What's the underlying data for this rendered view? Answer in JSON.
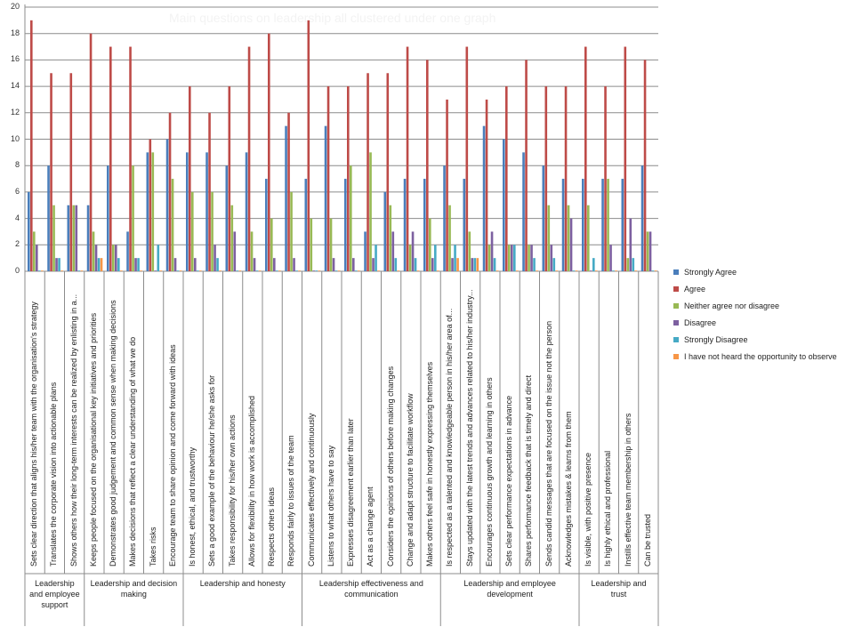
{
  "chart_data": {
    "type": "bar",
    "title": "Main questions on leadership all clustered under one graph",
    "ylim": [
      0,
      20
    ],
    "yticks": [
      "0",
      "2",
      "4",
      "6",
      "8",
      "10",
      "12",
      "14",
      "16",
      "18",
      "20"
    ],
    "grid": true,
    "legend_position": "right",
    "categories": [
      "Sets clear direction that aligns his/her team with the organisation's strategy",
      "Translates the corporate vision into actionable plans",
      "Shows others how their long-term interests can be realized by enlisting in a...",
      "Keeps people focused on the organisational key initiatives and priorities",
      "Demonstrates good judgement and common sense when making decisions",
      "Makes decisions that reflect a clear understanding of what we do",
      "Takes risks",
      "Encourage team to share opinion and come forward with ideas",
      "Is honest, ethical, and trustworthy",
      "Sets a good example of the behaviour he/she asks for",
      "Takes responsibility for his/her own actions",
      "Allows for flexibility in how work is accomplished",
      "Respects others ideas",
      "Responds fairly to issues of the team",
      "Communicates effectively and continuously",
      "Listens to what others have to say",
      "Expresses disagreement earlier than later",
      "Act as a change agent",
      "Considers the opinions of others before making changes",
      "Change and adapt structure to facilitate workflow",
      "Makes others feel safe in honestly expressing themselves",
      "Is respected as a talented and knowledgeable person in his/her area of...",
      "Stays updated with the latest trends and advances related to his/her industry...",
      "Encourages continuous growth and learning in others",
      "Sets clear performance expectations in advance",
      "Shares performance feedback that is timely and direct",
      "Sends candid messages that are focused on the issue not the person",
      "Acknowledges mistakes & learns from them",
      "Is visible, with positive presence",
      "Is highly ethical and professional",
      "Instills effective team membership in others",
      "Can be trusted"
    ],
    "groups": [
      {
        "label": "Leadership and employee support",
        "count": 3
      },
      {
        "label": "Leadership and decision making",
        "count": 5
      },
      {
        "label": "Leadership and honesty",
        "count": 6
      },
      {
        "label": "Leadership effectiveness and communication",
        "count": 7
      },
      {
        "label": "Leadership and employee development",
        "count": 7
      },
      {
        "label": "Leadership and trust",
        "count": 4
      }
    ],
    "series": [
      {
        "name": "Strongly Agree",
        "color": "#4a7ebb",
        "values": [
          6,
          8,
          5,
          5,
          8,
          3,
          9,
          10,
          9,
          9,
          8,
          9,
          7,
          11,
          7,
          11,
          7,
          3,
          6,
          7,
          7,
          8,
          7,
          11,
          10,
          9,
          8,
          7,
          7,
          7,
          7,
          8
        ]
      },
      {
        "name": "Agree",
        "color": "#be4b48",
        "values": [
          19,
          15,
          15,
          18,
          17,
          17,
          10,
          12,
          14,
          12,
          14,
          17,
          18,
          12,
          19,
          14,
          14,
          15,
          15,
          17,
          16,
          13,
          17,
          13,
          14,
          16,
          14,
          14,
          17,
          14,
          17,
          16
        ]
      },
      {
        "name": "Neither agree nor disagree",
        "color": "#98b954",
        "values": [
          3,
          5,
          5,
          3,
          2,
          8,
          9,
          7,
          6,
          6,
          5,
          3,
          4,
          6,
          4,
          4,
          8,
          9,
          5,
          2,
          4,
          5,
          3,
          2,
          2,
          2,
          5,
          5,
          5,
          7,
          1,
          3
        ]
      },
      {
        "name": "Disagree",
        "color": "#7d60a0",
        "values": [
          2,
          1,
          5,
          2,
          2,
          1,
          0,
          1,
          1,
          2,
          3,
          1,
          1,
          1,
          0,
          1,
          1,
          1,
          3,
          3,
          1,
          1,
          1,
          3,
          2,
          2,
          2,
          4,
          0,
          2,
          4,
          3
        ]
      },
      {
        "name": "Strongly  Disagree",
        "color": "#46aac5",
        "values": [
          0,
          1,
          0,
          1,
          1,
          1,
          2,
          0,
          0,
          1,
          0,
          0,
          0,
          0,
          0,
          0,
          0,
          2,
          1,
          1,
          2,
          2,
          1,
          1,
          2,
          1,
          1,
          0,
          1,
          0,
          1,
          0
        ]
      },
      {
        "name": "I have not heard the opportunity to observe",
        "color": "#f79646",
        "values": [
          0,
          0,
          0,
          1,
          0,
          0,
          0,
          0,
          0,
          0,
          0,
          0,
          0,
          0,
          0,
          0,
          0,
          0,
          0,
          0,
          0,
          1,
          1,
          0,
          0,
          0,
          0,
          0,
          0,
          0,
          0,
          0
        ]
      }
    ]
  }
}
